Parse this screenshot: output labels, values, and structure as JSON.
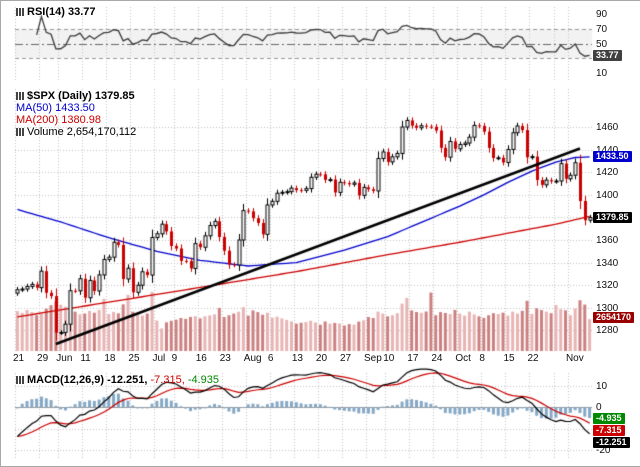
{
  "colors": {
    "up_candle": "#000000",
    "up_fill": "#ffffff",
    "down_candle": "#cc0000",
    "ma50": "#0000cc",
    "ma200": "#cc0000",
    "vol_up": "#e8b4b4",
    "vol_down": "#cc8080",
    "trendline": "#000000",
    "rsi_line": "#3a3a3a",
    "macd_line": "#000000",
    "signal_line": "#cc0000",
    "hist": "#85a8c6",
    "grid": "#c4c4c4",
    "box_blue": "#0000cc",
    "box_black": "#000000",
    "box_red": "#cc0000",
    "box_green": "#008800",
    "box_darkred": "#990000",
    "box_gray": "#404040"
  },
  "rsi_panel": {
    "legend": "RSI(14) 33.77",
    "value_box": "33.77"
  },
  "main_panel": {
    "title": "$SPX (Daily) 1379.85",
    "ma50_label": "MA(50) 1433.50",
    "ma200_label": "MA(200) 1380.98",
    "volume_label": "Volume 2,654,170,112",
    "boxes": {
      "ma50": "1433.50",
      "last": "1379.85",
      "volume": "2654170"
    }
  },
  "macd_panel": {
    "legend_macd": "MACD(12,26,9) -12.251,",
    "legend_signal": "-7.315,",
    "legend_hist": "-4.935",
    "boxes": {
      "hist": "-4.935",
      "signal": "-7.315",
      "macd": "-12.251"
    }
  },
  "chart_data": {
    "type": "candlestick",
    "symbol": "$SPX",
    "timeframe": "Daily",
    "last_close": 1379.85,
    "indicators": {
      "rsi14": 33.77,
      "ma50": 1433.5,
      "ma200": 1380.98,
      "last_volume": 2654170112,
      "macd": -12.251,
      "macd_signal": -7.315,
      "macd_hist": -4.935
    },
    "price_axis": {
      "ticks": [
        1460,
        1440,
        1420,
        1400,
        1380,
        1360,
        1340,
        1320,
        1300,
        1280
      ]
    },
    "rsi_axis": [
      90,
      70,
      50,
      30,
      10
    ],
    "macd_axis": [
      10,
      0,
      -10,
      -20
    ],
    "x_labels": [
      {
        "text": "21",
        "bar": 0
      },
      {
        "text": "29",
        "bar": 5
      },
      {
        "text": "Jun",
        "bar": 9
      },
      {
        "text": "11",
        "bar": 14
      },
      {
        "text": "18",
        "bar": 19
      },
      {
        "text": "25",
        "bar": 24
      },
      {
        "text": "Jul",
        "bar": 29
      },
      {
        "text": "9",
        "bar": 33
      },
      {
        "text": "16",
        "bar": 38
      },
      {
        "text": "23",
        "bar": 43
      },
      {
        "text": "Aug",
        "bar": 48
      },
      {
        "text": "6",
        "bar": 53
      },
      {
        "text": "13",
        "bar": 58
      },
      {
        "text": "20",
        "bar": 63
      },
      {
        "text": "27",
        "bar": 68
      },
      {
        "text": "Sep",
        "bar": 73
      },
      {
        "text": "10",
        "bar": 77
      },
      {
        "text": "17",
        "bar": 82
      },
      {
        "text": "24",
        "bar": 87
      },
      {
        "text": "Oct",
        "bar": 92
      },
      {
        "text": "8",
        "bar": 97
      },
      {
        "text": "15",
        "bar": 102
      },
      {
        "text": "22",
        "bar": 107
      },
      {
        "text": "Nov",
        "bar": 115
      }
    ],
    "week_grid_bars": [
      0,
      5,
      9,
      14,
      19,
      24,
      29,
      33,
      38,
      43,
      48,
      53,
      58,
      63,
      68,
      73,
      77,
      82,
      87,
      92,
      97,
      102,
      107,
      112,
      115
    ],
    "first_open": 1313,
    "closes": [
      1316.0,
      1316.6,
      1318.9,
      1320.7,
      1317.8,
      1332.4,
      1313.3,
      1310.3,
      1278.0,
      1278.2,
      1285.5,
      1315.1,
      1315.0,
      1325.7,
      1308.9,
      1324.2,
      1314.9,
      1329.1,
      1342.8,
      1344.8,
      1358.0,
      1355.7,
      1325.5,
      1335.0,
      1313.7,
      1320.0,
      1331.9,
      1329.0,
      1362.2,
      1365.5,
      1374.0,
      1367.6,
      1354.7,
      1352.5,
      1341.5,
      1341.4,
      1334.8,
      1356.8,
      1353.6,
      1363.7,
      1372.8,
      1376.5,
      1362.7,
      1350.5,
      1338.3,
      1337.9,
      1360.0,
      1386.0,
      1385.3,
      1379.3,
      1375.1,
      1365.0,
      1391.0,
      1394.2,
      1401.4,
      1402.2,
      1402.8,
      1405.9,
      1404.1,
      1403.9,
      1405.5,
      1415.5,
      1418.2,
      1418.1,
      1413.2,
      1413.5,
      1402.1,
      1411.1,
      1410.4,
      1409.3,
      1410.5,
      1399.5,
      1406.6,
      1404.9,
      1403.4,
      1432.1,
      1437.9,
      1429.1,
      1433.6,
      1436.6,
      1460.0,
      1465.8,
      1461.2,
      1459.3,
      1461.1,
      1460.3,
      1460.2,
      1456.9,
      1441.6,
      1433.3,
      1447.2,
      1440.7,
      1444.5,
      1445.8,
      1451.0,
      1461.4,
      1460.9,
      1455.9,
      1441.5,
      1432.6,
      1432.8,
      1428.6,
      1440.1,
      1454.9,
      1460.9,
      1457.3,
      1433.2,
      1433.8,
      1413.1,
      1408.8,
      1413.0,
      1411.9,
      1412.2,
      1427.6,
      1414.2,
      1417.3,
      1428.4,
      1394.5,
      1377.5,
      1379.85
    ],
    "volumes_millions": [
      3320,
      3180,
      3420,
      3250,
      2980,
      3150,
      3530,
      3820,
      4120,
      3850,
      3690,
      3510,
      3280,
      3050,
      3120,
      3340,
      3190,
      3420,
      4350,
      3080,
      3260,
      3140,
      3890,
      4680,
      3270,
      3080,
      2950,
      3120,
      4920,
      2540,
      1880,
      2390,
      2520,
      2610,
      2750,
      2680,
      2840,
      2900,
      2720,
      2890,
      2970,
      3050,
      3590,
      2830,
      2980,
      3120,
      3270,
      3650,
      2950,
      3380,
      3240,
      3020,
      3190,
      2780,
      2850,
      2720,
      2590,
      2470,
      2280,
      2350,
      2410,
      2520,
      2380,
      2190,
      2460,
      2280,
      2340,
      2290,
      2120,
      2240,
      2190,
      2450,
      2560,
      2830,
      2750,
      3280,
      3120,
      2890,
      2980,
      3150,
      3940,
      4420,
      3380,
      3250,
      3180,
      3290,
      4870,
      2980,
      3240,
      3170,
      3080,
      3420,
      3120,
      2950,
      3280,
      3050,
      2890,
      2760,
      2980,
      3150,
      3080,
      3190,
      2950,
      3280,
      3120,
      3350,
      4180,
      3090,
      3560,
      3410,
      3280,
      3150,
      3820,
      3480,
      3390,
      2980,
      3540,
      4230,
      3870,
      2654
    ],
    "ma50_samples": {
      "bars": [
        0,
        9,
        19,
        29,
        38,
        48,
        58,
        68,
        77,
        82,
        87,
        92,
        97,
        102,
        107,
        112,
        116,
        119
      ],
      "values": [
        1387,
        1376,
        1362,
        1350,
        1342,
        1337,
        1340,
        1351,
        1363,
        1372,
        1381,
        1390,
        1400,
        1411,
        1421,
        1429,
        1433,
        1433.5
      ]
    },
    "ma200_samples": {
      "bars": [
        0,
        19,
        38,
        58,
        77,
        92,
        102,
        112,
        119
      ],
      "values": [
        1292,
        1305,
        1318,
        1332,
        1347,
        1358,
        1366,
        1374,
        1380.98
      ]
    },
    "trendline": {
      "from_bar": 8,
      "from_price": 1268,
      "to_bar": 117,
      "to_price": 1441
    }
  }
}
